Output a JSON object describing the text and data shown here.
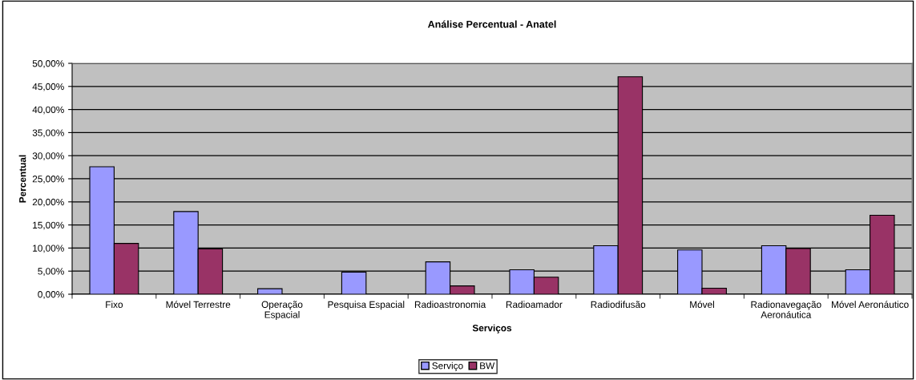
{
  "chart_data": {
    "type": "bar",
    "title": "Análise Percentual - Anatel",
    "xlabel": "Serviços",
    "ylabel": "Percentual",
    "categories": [
      "Fixo",
      "Móvel Terrestre",
      "Operação\nEspacial",
      "Pesquisa Espacial",
      "Radioastronomia",
      "Radioamador",
      "Radiodifusão",
      "Móvel",
      "Radionavegação\nAeronáutica",
      "Móvel Aeronáutico"
    ],
    "series": [
      {
        "name": "Serviço",
        "color": "#9999ff",
        "values": [
          27.6,
          17.9,
          1.2,
          4.8,
          7.0,
          5.3,
          10.5,
          9.6,
          10.5,
          5.3
        ]
      },
      {
        "name": "BW",
        "color": "#993366",
        "values": [
          11.0,
          9.8,
          null,
          null,
          1.8,
          3.7,
          47.1,
          1.3,
          9.9,
          17.1
        ]
      }
    ],
    "ylim": [
      0,
      50
    ],
    "yticks": [
      {
        "value": 0,
        "label": "0,00%"
      },
      {
        "value": 5,
        "label": "5,00%"
      },
      {
        "value": 10,
        "label": "10,00%"
      },
      {
        "value": 15,
        "label": "15,00%"
      },
      {
        "value": 20,
        "label": "20,00%"
      },
      {
        "value": 25,
        "label": "25,00%"
      },
      {
        "value": 30,
        "label": "30,00%"
      },
      {
        "value": 35,
        "label": "35,00%"
      },
      {
        "value": 40,
        "label": "40,00%"
      },
      {
        "value": 45,
        "label": "45,00%"
      },
      {
        "value": 50,
        "label": "50,00%"
      }
    ],
    "grid": "y",
    "legend": "bottom"
  }
}
